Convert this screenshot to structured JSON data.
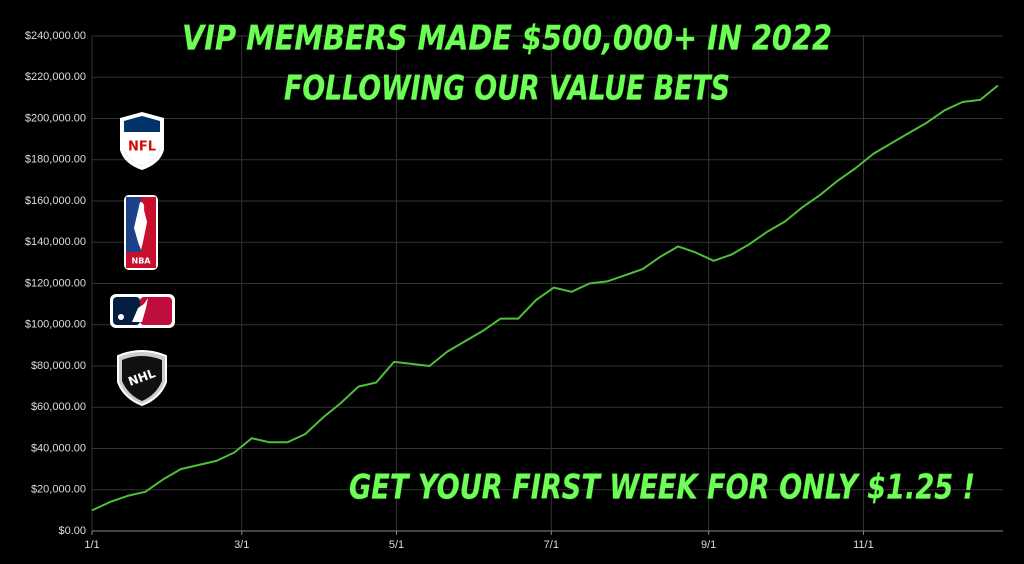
{
  "chart_data": {
    "type": "line",
    "title": "VIP MEMBERS MADE $500,000+ IN 2022",
    "subtitle": "FOLLOWING OUR VALUE BETS",
    "annotation": "GET YOUR FIRST WEEK FOR ONLY $1.25 !",
    "logos": [
      "NFL",
      "NBA",
      "NHL"
    ],
    "color": "#4fbf3a",
    "grid": true,
    "x": [
      "1/1",
      "1/8",
      "1/15",
      "1/22",
      "1/29",
      "2/5",
      "2/12",
      "2/19",
      "2/26",
      "3/5",
      "3/12",
      "3/19",
      "3/26",
      "4/2",
      "4/9",
      "4/16",
      "4/23",
      "4/30",
      "5/7",
      "5/14",
      "5/21",
      "5/28",
      "6/4",
      "6/11",
      "6/18",
      "6/25",
      "7/2",
      "7/9",
      "7/16",
      "7/23",
      "7/30",
      "8/6",
      "8/13",
      "8/20",
      "8/27",
      "9/3",
      "9/10",
      "9/17",
      "9/24",
      "10/1",
      "10/8",
      "10/15",
      "10/22",
      "10/29",
      "11/5",
      "11/12",
      "11/19",
      "11/26",
      "12/3",
      "12/10",
      "12/17",
      "12/24"
    ],
    "values": [
      10000,
      14000,
      17000,
      19000,
      25000,
      30000,
      32000,
      34000,
      38000,
      45000,
      43000,
      43000,
      47000,
      55000,
      62000,
      70000,
      72000,
      82000,
      81000,
      80000,
      87000,
      92000,
      97000,
      103000,
      103000,
      112000,
      118000,
      116000,
      120000,
      121000,
      124000,
      127000,
      133000,
      138000,
      135000,
      131000,
      134000,
      139000,
      145000,
      150000,
      157000,
      163000,
      170000,
      176000,
      183000,
      188000,
      193000,
      198000,
      204000,
      208000,
      209000,
      216000
    ],
    "xlim": [
      "1/1",
      "12/26"
    ],
    "xticks": [
      "1/1",
      "3/1",
      "5/1",
      "7/1",
      "9/1",
      "11/1"
    ],
    "ylim": [
      0,
      240000
    ],
    "yticks": [
      {
        "value": 0,
        "label": "$0.00"
      },
      {
        "value": 20000,
        "label": "$20,000.00"
      },
      {
        "value": 40000,
        "label": "$40,000.00"
      },
      {
        "value": 60000,
        "label": "$60,000.00"
      },
      {
        "value": 80000,
        "label": "$80,000.00"
      },
      {
        "value": 100000,
        "label": "$100,000.00"
      },
      {
        "value": 120000,
        "label": "$120,000.00"
      },
      {
        "value": 140000,
        "label": "$140,000.00"
      },
      {
        "value": 160000,
        "label": "$160,000.00"
      },
      {
        "value": 180000,
        "label": "$180,000.00"
      },
      {
        "value": 200000,
        "label": "$200,000.00"
      },
      {
        "value": 220000,
        "label": "$220,000.00"
      },
      {
        "value": 240000,
        "label": "$240,000.00"
      }
    ]
  }
}
